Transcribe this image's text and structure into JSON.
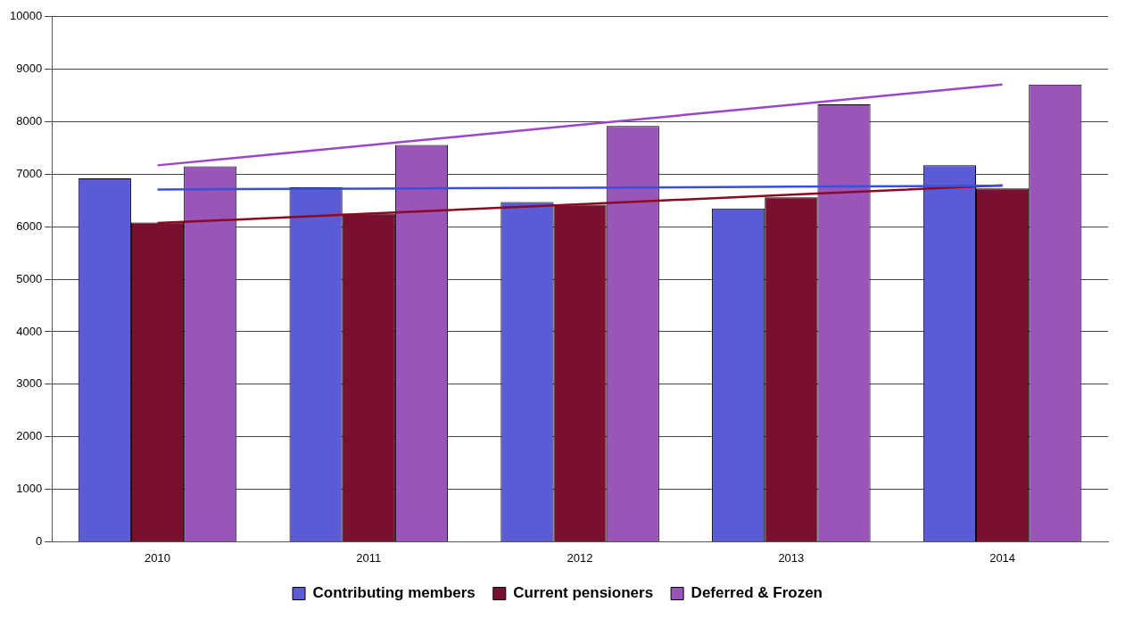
{
  "chart_data": {
    "type": "bar",
    "categories": [
      "2010",
      "2011",
      "2012",
      "2013",
      "2014"
    ],
    "series": [
      {
        "name": "Contributing members",
        "color": "#5b5bd6",
        "values": [
          6920,
          6750,
          6470,
          6350,
          7170
        ]
      },
      {
        "name": "Current pensioners",
        "color": "#7a1030",
        "values": [
          6080,
          6250,
          6420,
          6560,
          6730
        ]
      },
      {
        "name": "Deferred & Frozen",
        "color": "#9a55b8",
        "values": [
          7150,
          7560,
          7920,
          8330,
          8710
        ]
      },
      {
        "type": "line",
        "color": "#3a50d8",
        "values": [
          6710,
          6728,
          6745,
          6763,
          6780
        ]
      },
      {
        "type": "line",
        "color": "#8b0a20",
        "values": [
          6070,
          6250,
          6430,
          6610,
          6790
        ]
      },
      {
        "type": "line",
        "color": "#9b45c8",
        "values": [
          7170,
          7555,
          7940,
          8325,
          8710
        ]
      }
    ],
    "ylim": [
      0,
      10000
    ],
    "yticks": [
      0,
      1000,
      2000,
      3000,
      4000,
      5000,
      6000,
      7000,
      8000,
      9000,
      10000
    ],
    "grid": "y",
    "legend": "bottom",
    "marker": "none"
  }
}
